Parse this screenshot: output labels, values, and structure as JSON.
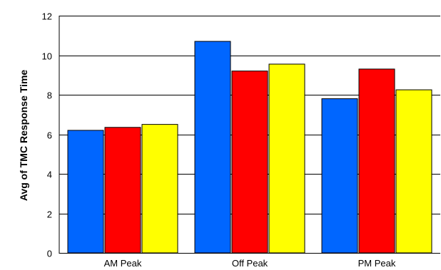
{
  "chart_data": {
    "type": "bar",
    "title": "",
    "xlabel": "",
    "ylabel": "Avg of TMC Response Time",
    "ylim": [
      0,
      12
    ],
    "yticks": [
      0,
      2,
      4,
      6,
      8,
      10,
      12
    ],
    "grid": true,
    "legend": "none",
    "categories": [
      "AM Peak",
      "Off Peak",
      "PM Peak"
    ],
    "series": [
      {
        "color": "#0066ff",
        "values": [
          6.2,
          10.7,
          7.8
        ]
      },
      {
        "color": "#ff0000",
        "values": [
          6.35,
          9.2,
          9.3
        ]
      },
      {
        "color": "#ffff00",
        "values": [
          6.5,
          9.55,
          8.25
        ]
      }
    ]
  }
}
